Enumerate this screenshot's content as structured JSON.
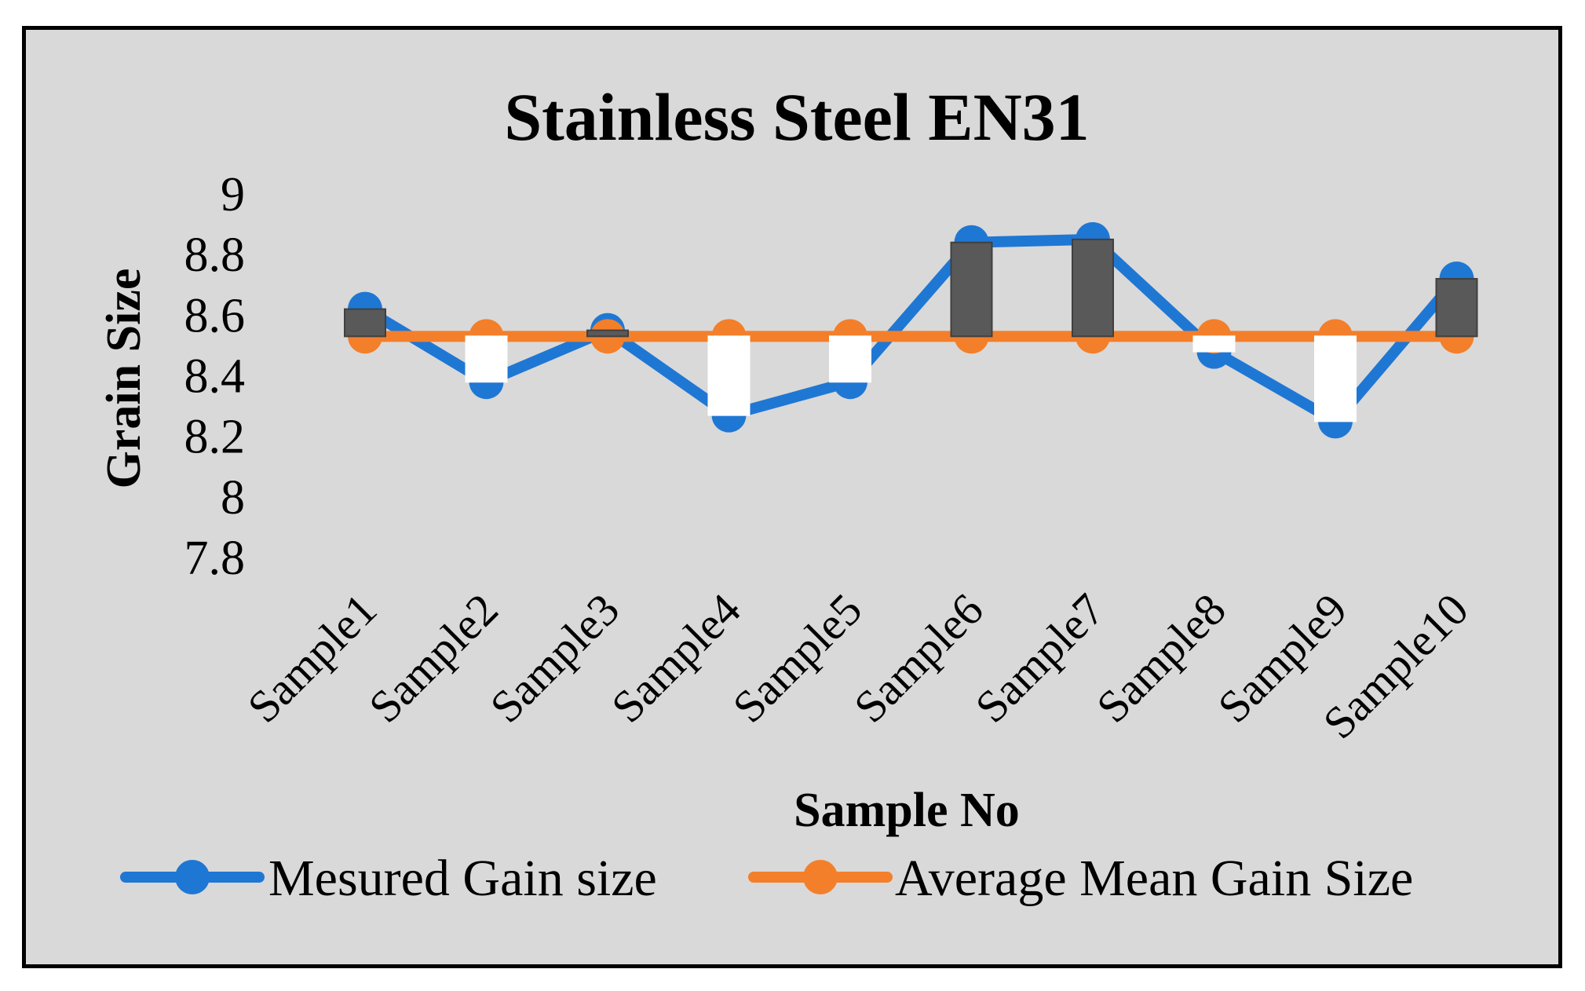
{
  "chart_data": {
    "type": "line",
    "title": "Stainless Steel EN31",
    "xlabel": "Sample No",
    "ylabel": "Grain Size",
    "categories": [
      "Sample1",
      "Sample2",
      "Sample3",
      "Sample4",
      "Sample5",
      "Sample6",
      "Sample7",
      "Sample8",
      "Sample9",
      "Sample10"
    ],
    "yticks": [
      "7.8",
      "8",
      "8.2",
      "8.4",
      "8.6",
      "8.8",
      "9"
    ],
    "ylim": [
      7.8,
      9.0
    ],
    "grid": false,
    "legend_position": "bottom",
    "series": [
      {
        "name": "Mesured Gain size",
        "color": "#1f77d4",
        "values": [
          8.62,
          8.38,
          8.55,
          8.27,
          8.38,
          8.84,
          8.85,
          8.48,
          8.25,
          8.72
        ]
      },
      {
        "name": "Average Mean Gain Size",
        "color": "#f47f2a",
        "values": [
          8.53,
          8.53,
          8.53,
          8.53,
          8.53,
          8.53,
          8.53,
          8.53,
          8.53,
          8.53
        ]
      }
    ],
    "updown_bars": {
      "up_color": "#595959",
      "down_color": "#ffffff"
    }
  }
}
